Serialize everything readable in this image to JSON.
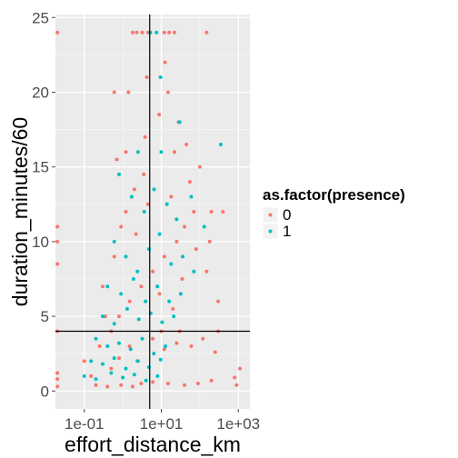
{
  "chart_data": {
    "type": "scatter",
    "xlabel": "effort_distance_km",
    "ylabel": "duration_minutes/60",
    "x_scale": "log10",
    "xlim": [
      0.0178,
      2000
    ],
    "ylim": [
      -1.2,
      25.2
    ],
    "x_ticks": [
      0.1,
      10,
      1000
    ],
    "x_tick_labels": [
      "1e-01",
      "1e+01",
      "1e+03"
    ],
    "y_ticks": [
      0,
      5,
      10,
      15,
      20,
      25
    ],
    "y_tick_labels": [
      "0",
      "5",
      "10",
      "15",
      "20",
      "25"
    ],
    "grid": true,
    "reference_lines": {
      "vertical_x": 5,
      "horizontal_y": 4
    },
    "legend": {
      "title": "as.factor(presence)",
      "placement": "right",
      "entries": [
        {
          "label": "0",
          "color": "#F8766D"
        },
        {
          "label": "1",
          "color": "#00BFC4"
        }
      ]
    },
    "series": [
      {
        "name": "0",
        "color": "#F8766D",
        "points": [
          [
            0.02,
            24.0
          ],
          [
            1.8,
            24.0
          ],
          [
            2.3,
            24.0
          ],
          [
            3.2,
            24.0
          ],
          [
            4.5,
            24.0
          ],
          [
            12,
            24.0
          ],
          [
            16,
            24.0
          ],
          [
            22,
            24.0
          ],
          [
            150,
            24.0
          ],
          [
            0.6,
            20.0
          ],
          [
            1.4,
            20.0
          ],
          [
            4.2,
            21.0
          ],
          [
            12.5,
            22.0
          ],
          [
            15,
            20.0
          ],
          [
            8.8,
            18.5
          ],
          [
            28,
            18.0
          ],
          [
            45,
            16.5
          ],
          [
            22,
            16.0
          ],
          [
            3.8,
            17.0
          ],
          [
            0.7,
            15.5
          ],
          [
            1.2,
            16.0
          ],
          [
            0.02,
            11.0
          ],
          [
            0.02,
            10.0
          ],
          [
            0.02,
            8.5
          ],
          [
            0.02,
            4.0
          ],
          [
            0.02,
            1.2
          ],
          [
            0.02,
            0.8
          ],
          [
            0.02,
            0.3
          ],
          [
            0.2,
            0.4
          ],
          [
            0.4,
            0.3
          ],
          [
            0.9,
            0.4
          ],
          [
            1.8,
            0.3
          ],
          [
            3,
            0.5
          ],
          [
            6,
            0.6
          ],
          [
            15,
            0.5
          ],
          [
            40,
            0.4
          ],
          [
            90,
            0.5
          ],
          [
            200,
            0.7
          ],
          [
            800,
            0.9
          ],
          [
            1100,
            1.5
          ],
          [
            900,
            0.4
          ],
          [
            0.5,
            1.5
          ],
          [
            0.8,
            2.2
          ],
          [
            1.5,
            3.0
          ],
          [
            2.5,
            2.0
          ],
          [
            6,
            3.5
          ],
          [
            12,
            2.8
          ],
          [
            25,
            3.2
          ],
          [
            60,
            3.0
          ],
          [
            120,
            3.5
          ],
          [
            250,
            2.6
          ],
          [
            0.8,
            5.0
          ],
          [
            1.5,
            6.0
          ],
          [
            3,
            7.0
          ],
          [
            6,
            8.0
          ],
          [
            12,
            9.0
          ],
          [
            25,
            10.0
          ],
          [
            40,
            11.0
          ],
          [
            70,
            12.0
          ],
          [
            150,
            8.0
          ],
          [
            300,
            6.0
          ],
          [
            1.2,
            12.0
          ],
          [
            2,
            13.5
          ],
          [
            3.5,
            14.5
          ],
          [
            18,
            13.0
          ],
          [
            55,
            14.0
          ],
          [
            100,
            15.0
          ],
          [
            200,
            12.0
          ],
          [
            400,
            12.0
          ],
          [
            0.3,
            7.0
          ],
          [
            0.6,
            9.0
          ],
          [
            0.9,
            11.0
          ],
          [
            2.2,
            10.5
          ],
          [
            4.5,
            12.5
          ],
          [
            9,
            6.5
          ],
          [
            20,
            5.5
          ],
          [
            35,
            7.5
          ],
          [
            80,
            9.5
          ],
          [
            180,
            10.0
          ],
          [
            0.25,
            3.0
          ],
          [
            0.35,
            5.0
          ],
          [
            0.5,
            4.0
          ],
          [
            10,
            4.0
          ],
          [
            30,
            4.0
          ],
          [
            300,
            4.0
          ],
          [
            0.1,
            2.0
          ],
          [
            0.15,
            1.0
          ]
        ]
      },
      {
        "name": "1",
        "color": "#00BFC4",
        "points": [
          [
            5.2,
            24.0
          ],
          [
            7.5,
            24.0
          ],
          [
            9.5,
            21.0
          ],
          [
            30,
            18.0
          ],
          [
            350,
            16.5
          ],
          [
            10,
            16.0
          ],
          [
            2.5,
            16.0
          ],
          [
            0.8,
            14.5
          ],
          [
            1.7,
            13.0
          ],
          [
            3.6,
            12.0
          ],
          [
            6.5,
            13.5
          ],
          [
            14,
            12.5
          ],
          [
            25,
            11.5
          ],
          [
            60,
            13.0
          ],
          [
            130,
            11.0
          ],
          [
            0.6,
            10.0
          ],
          [
            1.2,
            9.0
          ],
          [
            2.4,
            8.0
          ],
          [
            4.8,
            9.5
          ],
          [
            9,
            10.5
          ],
          [
            18,
            8.5
          ],
          [
            36,
            9.0
          ],
          [
            70,
            8.0
          ],
          [
            0.4,
            7.0
          ],
          [
            0.9,
            6.5
          ],
          [
            1.9,
            7.5
          ],
          [
            3.9,
            6.0
          ],
          [
            7.9,
            7.0
          ],
          [
            16,
            6.0
          ],
          [
            32,
            6.5
          ],
          [
            0.3,
            5.0
          ],
          [
            0.6,
            4.5
          ],
          [
            1.3,
            5.5
          ],
          [
            2.6,
            4.8
          ],
          [
            5.3,
            5.2
          ],
          [
            10.5,
            4.6
          ],
          [
            21,
            5.0
          ],
          [
            0.2,
            3.5
          ],
          [
            0.4,
            3.0
          ],
          [
            0.8,
            3.2
          ],
          [
            1.6,
            2.8
          ],
          [
            3.2,
            3.5
          ],
          [
            6.4,
            2.5
          ],
          [
            12.8,
            3.0
          ],
          [
            0.15,
            2.0
          ],
          [
            0.3,
            1.8
          ],
          [
            0.6,
            2.2
          ],
          [
            1.2,
            1.5
          ],
          [
            2.4,
            2.0
          ],
          [
            4.8,
            1.6
          ],
          [
            9.6,
            2.1
          ],
          [
            0.1,
            1.0
          ],
          [
            0.2,
            0.8
          ],
          [
            0.5,
            1.2
          ],
          [
            1.0,
            0.9
          ],
          [
            2.0,
            1.1
          ],
          [
            4.0,
            0.7
          ],
          [
            8.0,
            1.0
          ]
        ]
      }
    ]
  }
}
